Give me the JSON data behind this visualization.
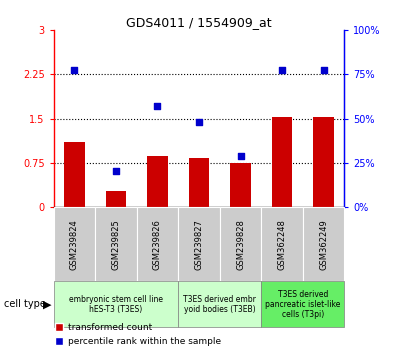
{
  "title": "GDS4011 / 1554909_at",
  "samples": [
    "GSM239824",
    "GSM239825",
    "GSM239826",
    "GSM239827",
    "GSM239828",
    "GSM362248",
    "GSM362249"
  ],
  "red_values": [
    1.1,
    0.28,
    0.87,
    0.83,
    0.75,
    1.52,
    1.52
  ],
  "blue_values": [
    2.32,
    0.62,
    1.72,
    1.45,
    0.87,
    2.33,
    2.33
  ],
  "red_ylim": [
    0,
    3
  ],
  "blue_ylim": [
    0,
    100
  ],
  "red_yticks": [
    0,
    0.75,
    1.5,
    2.25,
    3
  ],
  "blue_yticks": [
    0,
    25,
    50,
    75,
    100
  ],
  "red_yticklabels": [
    "0",
    "0.75",
    "1.5",
    "2.25",
    "3"
  ],
  "blue_yticklabels": [
    "0%",
    "25%",
    "50%",
    "75%",
    "100%"
  ],
  "cell_type_groups": [
    {
      "label": "embryonic stem cell line\nhES-T3 (T3ES)",
      "start": 0,
      "end": 3,
      "color": "#ccffcc"
    },
    {
      "label": "T3ES derived embr\nyoid bodies (T3EB)",
      "start": 3,
      "end": 5,
      "color": "#ccffcc"
    },
    {
      "label": "T3ES derived\npancreatic islet-like\ncells (T3pi)",
      "start": 5,
      "end": 7,
      "color": "#66ee66"
    }
  ],
  "bar_color": "#cc0000",
  "dot_color": "#0000cc",
  "sample_bg": "#cccccc",
  "cell_label_text": "cell type",
  "legend_labels": [
    "transformed count",
    "percentile rank within the sample"
  ],
  "bar_width": 0.5
}
